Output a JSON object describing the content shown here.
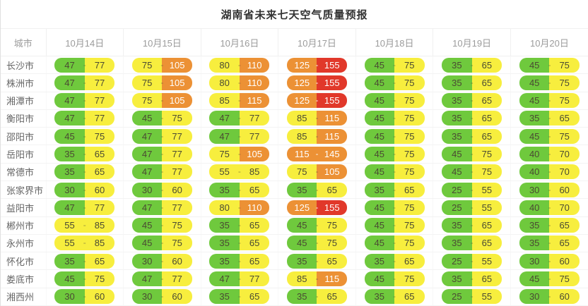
{
  "title": "湖南省未来七天空气质量预报",
  "table": {
    "city_header": "城市",
    "date_headers": [
      "10月14日",
      "10月15日",
      "10月16日",
      "10月17日",
      "10月18日",
      "10月19日",
      "10月20日"
    ],
    "range_separator": "-",
    "rows": [
      {
        "city": "长沙市",
        "values": [
          [
            47,
            77
          ],
          [
            75,
            105
          ],
          [
            80,
            110
          ],
          [
            125,
            155
          ],
          [
            45,
            75
          ],
          [
            35,
            65
          ],
          [
            45,
            75
          ]
        ]
      },
      {
        "city": "株洲市",
        "values": [
          [
            47,
            77
          ],
          [
            75,
            105
          ],
          [
            80,
            110
          ],
          [
            125,
            155
          ],
          [
            45,
            75
          ],
          [
            35,
            65
          ],
          [
            45,
            75
          ]
        ]
      },
      {
        "city": "湘潭市",
        "values": [
          [
            47,
            77
          ],
          [
            75,
            105
          ],
          [
            85,
            115
          ],
          [
            125,
            155
          ],
          [
            45,
            75
          ],
          [
            35,
            65
          ],
          [
            45,
            75
          ]
        ]
      },
      {
        "city": "衡阳市",
        "values": [
          [
            47,
            77
          ],
          [
            45,
            75
          ],
          [
            47,
            77
          ],
          [
            85,
            115
          ],
          [
            45,
            75
          ],
          [
            35,
            65
          ],
          [
            35,
            65
          ]
        ]
      },
      {
        "city": "邵阳市",
        "values": [
          [
            45,
            75
          ],
          [
            47,
            77
          ],
          [
            47,
            77
          ],
          [
            85,
            115
          ],
          [
            45,
            75
          ],
          [
            35,
            65
          ],
          [
            45,
            75
          ]
        ]
      },
      {
        "city": "岳阳市",
        "values": [
          [
            35,
            65
          ],
          [
            47,
            77
          ],
          [
            75,
            105
          ],
          [
            115,
            145
          ],
          [
            45,
            75
          ],
          [
            45,
            75
          ],
          [
            40,
            70
          ]
        ]
      },
      {
        "city": "常德市",
        "values": [
          [
            35,
            65
          ],
          [
            47,
            77
          ],
          [
            55,
            85
          ],
          [
            75,
            105
          ],
          [
            45,
            75
          ],
          [
            45,
            75
          ],
          [
            40,
            70
          ]
        ]
      },
      {
        "city": "张家界市",
        "values": [
          [
            30,
            60
          ],
          [
            30,
            60
          ],
          [
            35,
            65
          ],
          [
            35,
            65
          ],
          [
            35,
            65
          ],
          [
            25,
            55
          ],
          [
            30,
            60
          ]
        ]
      },
      {
        "city": "益阳市",
        "values": [
          [
            47,
            77
          ],
          [
            47,
            77
          ],
          [
            80,
            110
          ],
          [
            125,
            155
          ],
          [
            45,
            75
          ],
          [
            25,
            55
          ],
          [
            40,
            70
          ]
        ]
      },
      {
        "city": "郴州市",
        "values": [
          [
            55,
            85
          ],
          [
            45,
            75
          ],
          [
            35,
            65
          ],
          [
            45,
            75
          ],
          [
            45,
            75
          ],
          [
            35,
            65
          ],
          [
            35,
            65
          ]
        ]
      },
      {
        "city": "永州市",
        "values": [
          [
            55,
            85
          ],
          [
            45,
            75
          ],
          [
            35,
            65
          ],
          [
            45,
            75
          ],
          [
            45,
            75
          ],
          [
            35,
            65
          ],
          [
            35,
            65
          ]
        ]
      },
      {
        "city": "怀化市",
        "values": [
          [
            35,
            65
          ],
          [
            30,
            60
          ],
          [
            35,
            65
          ],
          [
            35,
            65
          ],
          [
            35,
            65
          ],
          [
            25,
            55
          ],
          [
            30,
            60
          ]
        ]
      },
      {
        "city": "娄底市",
        "values": [
          [
            45,
            75
          ],
          [
            47,
            77
          ],
          [
            47,
            77
          ],
          [
            85,
            115
          ],
          [
            45,
            75
          ],
          [
            35,
            65
          ],
          [
            45,
            75
          ]
        ]
      },
      {
        "city": "湘西州",
        "values": [
          [
            30,
            60
          ],
          [
            30,
            60
          ],
          [
            35,
            65
          ],
          [
            35,
            65
          ],
          [
            35,
            65
          ],
          [
            25,
            55
          ],
          [
            30,
            60
          ]
        ]
      }
    ]
  },
  "aqi_palette": {
    "levels": [
      {
        "name": "good",
        "max": 50,
        "bg": "#6fc93d",
        "fg": "#4a4a33"
      },
      {
        "name": "moderate",
        "max": 100,
        "bg": "#f7ee3e",
        "fg": "#4a4a33"
      },
      {
        "name": "unhealthy",
        "max": 150,
        "bg": "#ec9135",
        "fg": "#ffffff"
      },
      {
        "name": "very-unhealthy",
        "max": 500,
        "bg": "#e1382a",
        "fg": "#ffffff"
      }
    ]
  }
}
